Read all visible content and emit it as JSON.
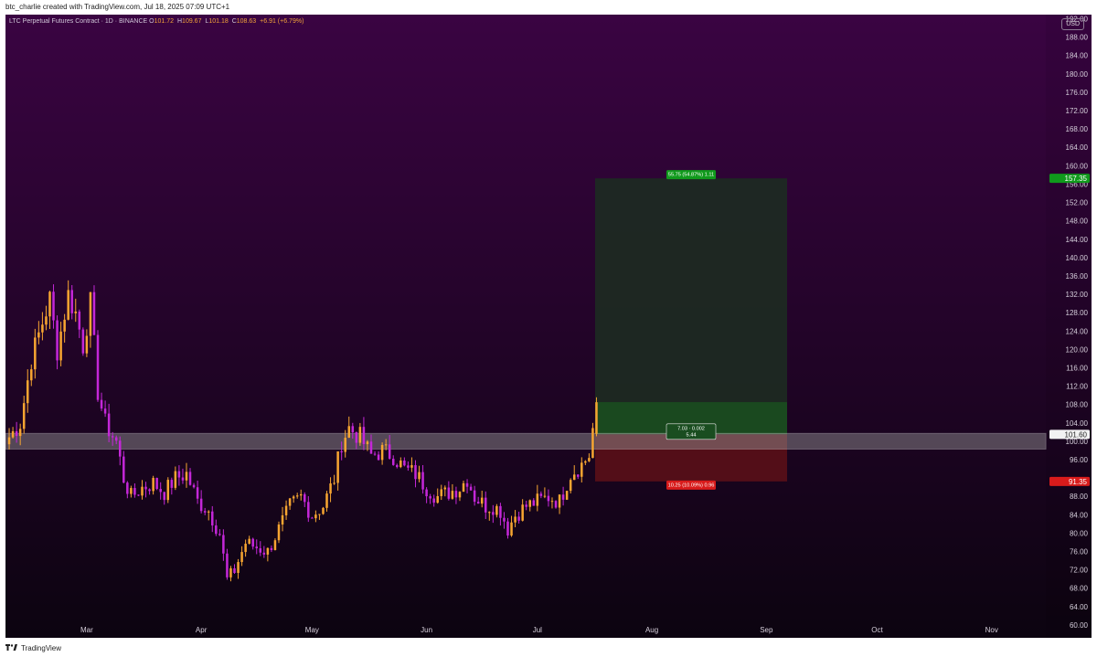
{
  "caption": "btc_charlie created with TradingView.com, Jul 18, 2025 07:09 UTC+1",
  "legend": {
    "symbol": "LTC Perpetual Futures Contract · 1D · BINANCE",
    "o_label": "O",
    "o": "101.72",
    "h_label": "H",
    "h": "109.67",
    "l_label": "L",
    "l": "101.18",
    "c_label": "C",
    "c": "108.63",
    "change": "+6.91 (+6.79%)"
  },
  "currency": "USD",
  "footer_brand": "TradingView",
  "colors": {
    "bg_top": "#3a0442",
    "bg_bottom": "#0c0410",
    "candle_up": "#f7a531",
    "candle_down": "#c427d8",
    "target_zone": "#1d2a22",
    "profit_zone": "#1a4d20",
    "stop_zone": "#5e1018",
    "support_band": "#9a9a9a",
    "target_badge": "#109a1c",
    "stop_badge": "#d81b1b"
  },
  "chart_data": {
    "type": "candlestick",
    "y_axis": {
      "min": 57.3,
      "max": 193,
      "ticks": [
        "60.00",
        "64.00",
        "68.00",
        "72.00",
        "76.00",
        "80.00",
        "84.00",
        "88.00",
        "96.00",
        "100.00",
        "104.00",
        "108.00",
        "112.00",
        "116.00",
        "120.00",
        "124.00",
        "128.00",
        "132.00",
        "136.00",
        "140.00",
        "144.00",
        "148.00",
        "152.00",
        "156.00",
        "160.00",
        "164.00",
        "168.00",
        "172.00",
        "176.00",
        "180.00",
        "184.00",
        "188.00",
        "192.00"
      ]
    },
    "x_axis": {
      "labels": [
        "Mar",
        "Apr",
        "May",
        "Jun",
        "Jul",
        "Aug",
        "Sep",
        "Oct",
        "Nov"
      ],
      "start_date": "2025-02-07",
      "days_per_px": 0.2475
    },
    "price_labels": [
      {
        "value": 157.35,
        "text": "157.35",
        "kind": "target"
      },
      {
        "value": 101.6,
        "text": "101.60",
        "kind": "entry"
      },
      {
        "value": 91.35,
        "text": "91.35",
        "kind": "stop"
      }
    ],
    "position": {
      "side": "long",
      "entry": 101.6,
      "target": 157.35,
      "stop": 91.35,
      "current": 108.63,
      "target_text": "55.75 (54.87%) 1.11",
      "ratio_text_line1": "7.03 · 0.002",
      "ratio_text_line2": "5.44",
      "stop_text": "10.25 (10.09%) 0.96"
    },
    "support_band": {
      "low": 98.4,
      "high": 101.8
    },
    "anchors": [
      [
        "2025-02-08",
        101
      ],
      [
        "2025-02-11",
        104
      ],
      [
        "2025-02-14",
        118
      ],
      [
        "2025-02-17",
        126
      ],
      [
        "2025-02-19",
        131
      ],
      [
        "2025-02-21",
        120
      ],
      [
        "2025-02-24",
        132
      ],
      [
        "2025-02-26",
        128
      ],
      [
        "2025-02-28",
        121
      ],
      [
        "2025-03-02",
        130
      ],
      [
        "2025-03-04",
        111
      ],
      [
        "2025-03-06",
        104
      ],
      [
        "2025-03-09",
        100
      ],
      [
        "2025-03-11",
        92
      ],
      [
        "2025-03-13",
        88
      ],
      [
        "2025-03-16",
        90
      ],
      [
        "2025-03-19",
        91
      ],
      [
        "2025-03-22",
        89
      ],
      [
        "2025-03-25",
        92
      ],
      [
        "2025-03-28",
        93
      ],
      [
        "2025-03-31",
        87
      ],
      [
        "2025-04-03",
        85
      ],
      [
        "2025-04-06",
        80
      ],
      [
        "2025-04-08",
        70
      ],
      [
        "2025-04-10",
        72
      ],
      [
        "2025-04-13",
        78
      ],
      [
        "2025-04-16",
        77
      ],
      [
        "2025-04-19",
        76
      ],
      [
        "2025-04-22",
        81
      ],
      [
        "2025-04-25",
        86
      ],
      [
        "2025-04-28",
        88
      ],
      [
        "2025-05-01",
        84
      ],
      [
        "2025-05-04",
        86
      ],
      [
        "2025-05-07",
        92
      ],
      [
        "2025-05-09",
        100
      ],
      [
        "2025-05-11",
        103
      ],
      [
        "2025-05-14",
        101
      ],
      [
        "2025-05-17",
        97
      ],
      [
        "2025-05-20",
        98
      ],
      [
        "2025-05-23",
        97
      ],
      [
        "2025-05-26",
        94
      ],
      [
        "2025-05-29",
        93
      ],
      [
        "2025-06-01",
        90
      ],
      [
        "2025-06-04",
        88
      ],
      [
        "2025-06-07",
        89
      ],
      [
        "2025-06-10",
        90
      ],
      [
        "2025-06-12",
        92
      ],
      [
        "2025-06-14",
        88
      ],
      [
        "2025-06-17",
        86
      ],
      [
        "2025-06-19",
        86
      ],
      [
        "2025-06-21",
        85
      ],
      [
        "2025-06-23",
        81
      ],
      [
        "2025-06-25",
        84
      ],
      [
        "2025-06-28",
        86
      ],
      [
        "2025-07-01",
        87
      ],
      [
        "2025-07-04",
        88
      ],
      [
        "2025-07-07",
        87
      ],
      [
        "2025-07-10",
        93
      ],
      [
        "2025-07-13",
        95
      ],
      [
        "2025-07-15",
        97
      ],
      [
        "2025-07-17",
        108.6
      ]
    ],
    "xlabel": "",
    "ylabel": "",
    "title": ""
  }
}
